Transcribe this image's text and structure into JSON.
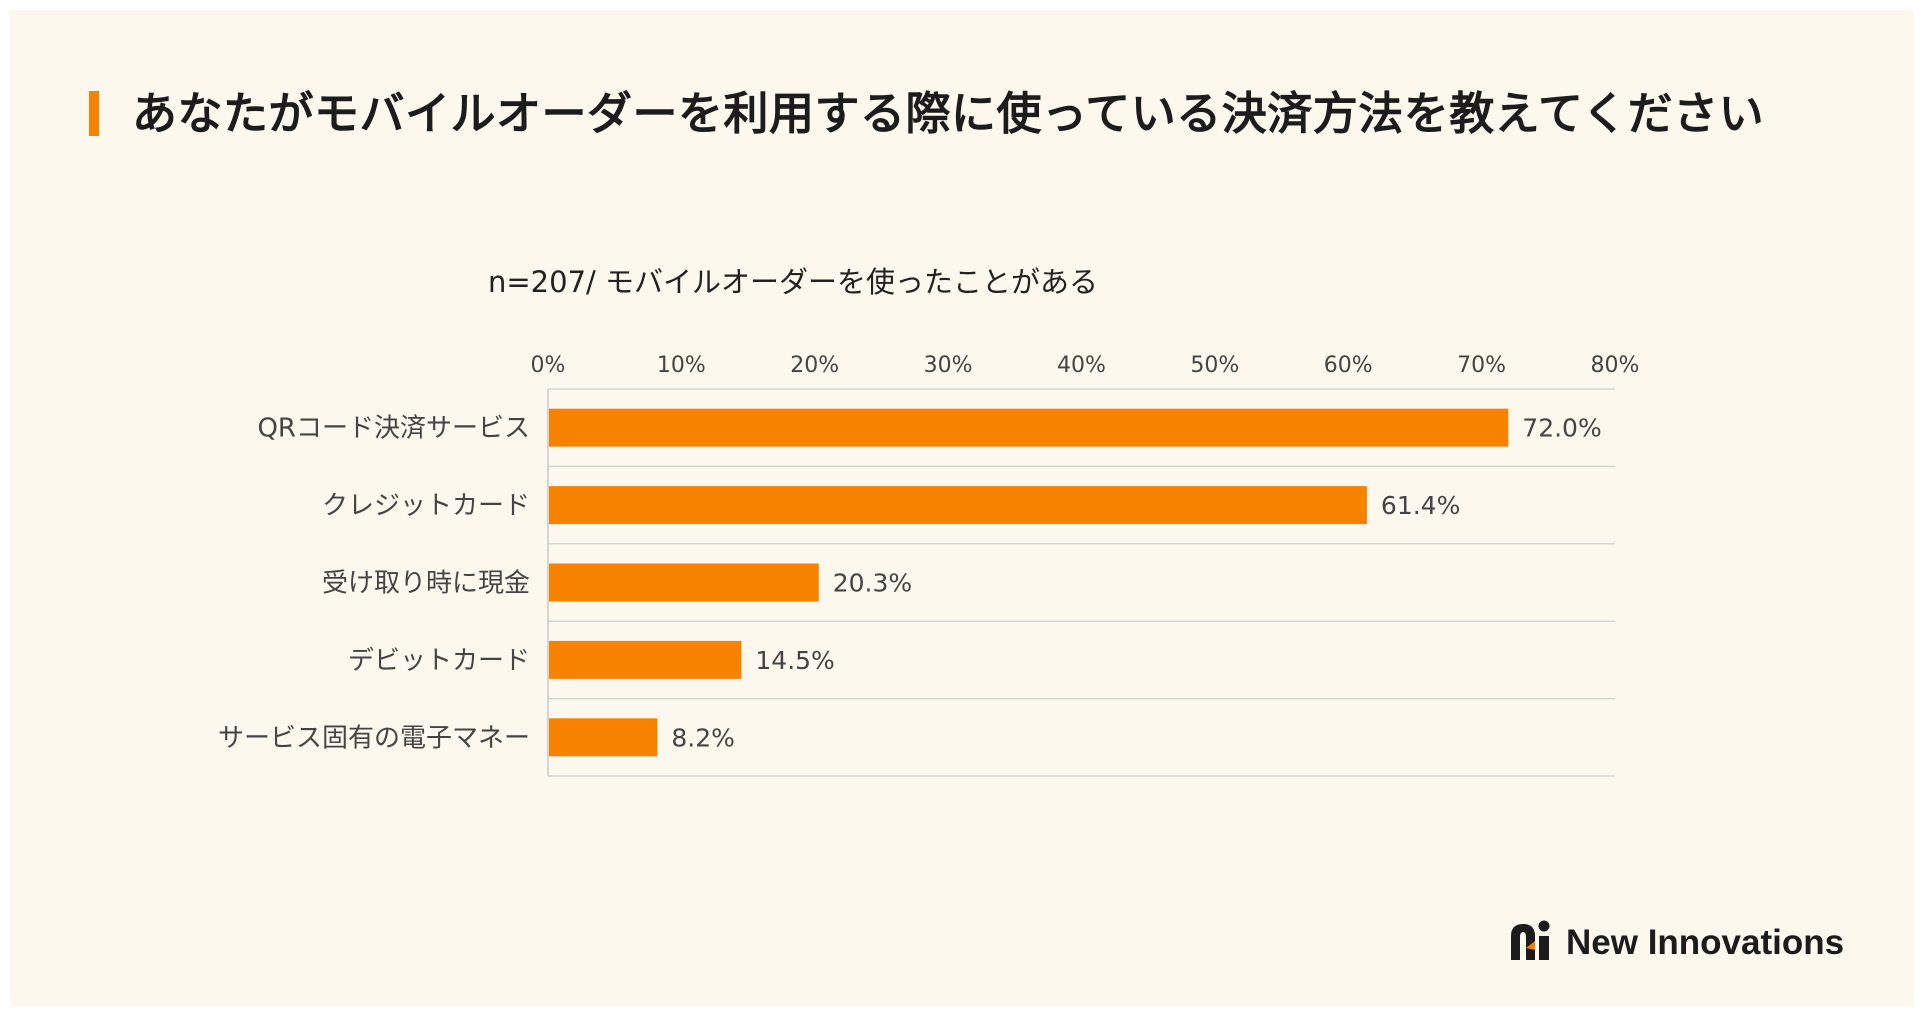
{
  "title": "あなたがモバイルオーダーを利用する際に使っている決済方法を教えてください",
  "subtitle": "n=207/ モバイルオーダーを使ったことがある",
  "brand": {
    "name": "New Innovations",
    "logo_icon": "new-innovations-logo-mark"
  },
  "colors": {
    "accent": "#f78200",
    "background": "#fcf8ee",
    "text": "#1c1c1c",
    "axis_text": "#444444",
    "gridline": "#d6d6d6"
  },
  "chart_data": {
    "type": "bar",
    "orientation": "horizontal",
    "categories": [
      "QRコード決済サービス",
      "クレジットカード",
      "受け取り時に現金",
      "デビットカード",
      "サービス固有の電子マネー"
    ],
    "values": [
      72.0,
      61.4,
      20.3,
      14.5,
      8.2
    ],
    "data_labels": [
      "72.0%",
      "61.4%",
      "20.3%",
      "14.5%",
      "8.2%"
    ],
    "xlim": [
      0,
      80
    ],
    "xticks": [
      0,
      10,
      20,
      30,
      40,
      50,
      60,
      70,
      80
    ],
    "xtick_labels": [
      "0%",
      "10%",
      "20%",
      "30%",
      "40%",
      "50%",
      "60%",
      "70%",
      "80%"
    ],
    "axis_position": "top",
    "grid": "horizontal row separators",
    "title": "n=207/ モバイルオーダーを使ったことがある",
    "xlabel": "",
    "ylabel": ""
  }
}
